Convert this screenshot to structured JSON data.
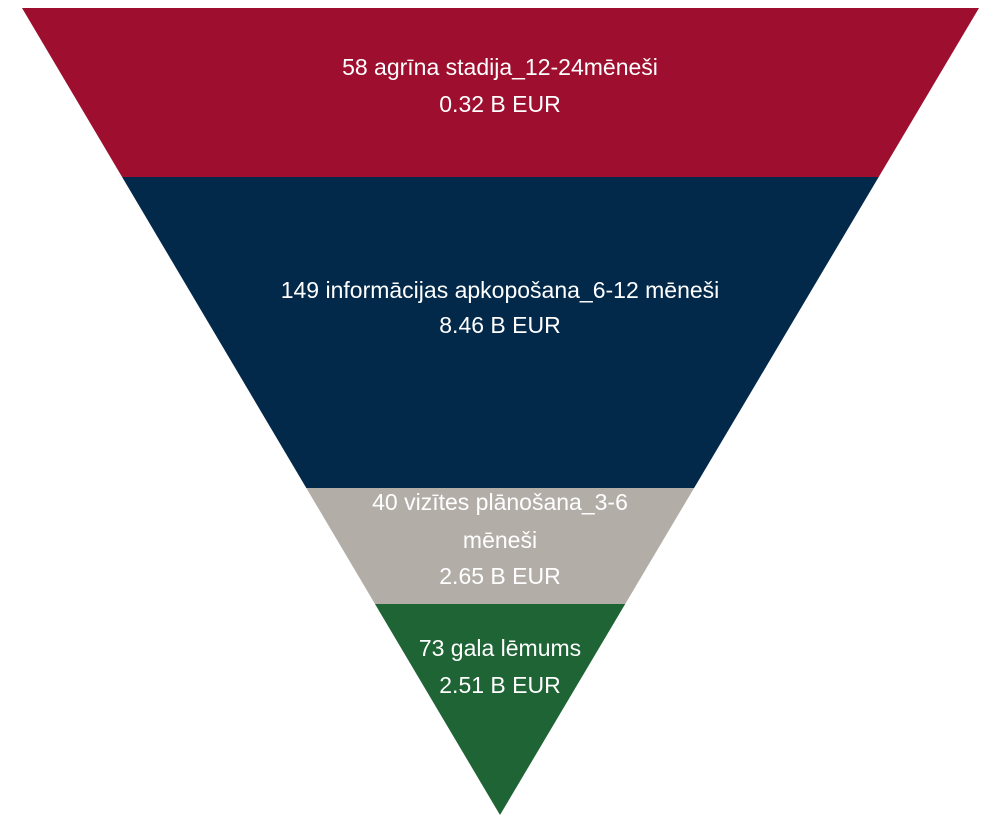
{
  "chart_data": {
    "type": "funnel",
    "title": "",
    "segments": [
      {
        "count": 58,
        "stage": "agrīna stadija_12-24mēneši",
        "label_lines": [
          "58 agrīna stadija_12-24mēneši",
          "0.32 B EUR"
        ],
        "value": 0.32,
        "unit": "B EUR",
        "value_label": "0.32 B EUR",
        "color": "#9E0E2F"
      },
      {
        "count": 149,
        "stage": "informācijas apkopošana_6-12 mēneši",
        "label_lines": [
          "149 informācijas apkopošana_6-12 mēneši",
          "8.46 B EUR"
        ],
        "value": 8.46,
        "unit": "B EUR",
        "value_label": "8.46 B EUR",
        "color": "#03294A"
      },
      {
        "count": 40,
        "stage": "vizītes plānošana_3-6 mēneši",
        "label_lines": [
          "40 vizītes plānošana_3-6",
          "mēneši",
          "2.65 B EUR"
        ],
        "value": 2.65,
        "unit": "B EUR",
        "value_label": "2.65 B EUR",
        "color": "#B3ADA8"
      },
      {
        "count": 73,
        "stage": "gala lēmums",
        "label_lines": [
          "73 gala lēmums",
          "2.51 B EUR"
        ],
        "value": 2.51,
        "unit": "B EUR",
        "value_label": "2.51 B EUR",
        "color": "#1E6435"
      }
    ]
  }
}
